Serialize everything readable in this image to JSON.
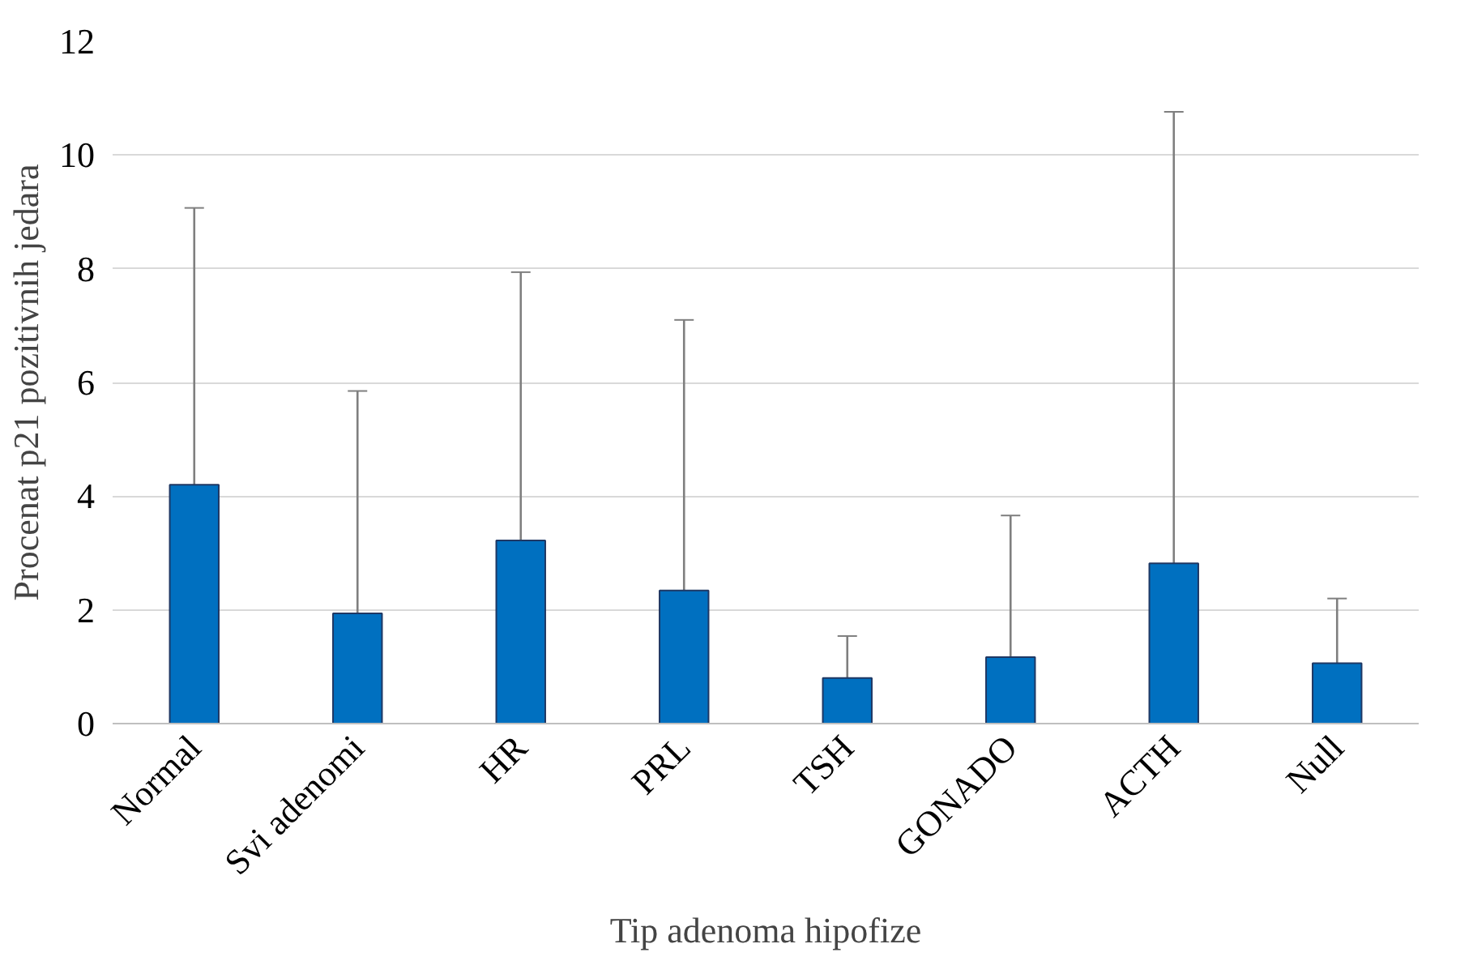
{
  "chart_data": {
    "type": "bar",
    "xlabel": "Tip adenoma hipofize",
    "ylabel": "Procenat p21 pozitivnih jedara",
    "categories": [
      "Normal",
      "Svi adenomi",
      "HR",
      "PRL",
      "TSH",
      "GONADO",
      "ACTH",
      "Null"
    ],
    "values": [
      4.2,
      1.94,
      3.22,
      2.34,
      0.8,
      1.17,
      2.82,
      1.06
    ],
    "errors": [
      [
        4.2,
        9.07
      ],
      [
        1.94,
        5.85
      ],
      [
        3.22,
        7.94
      ],
      [
        2.34,
        7.1
      ],
      [
        0.8,
        1.54
      ],
      [
        1.17,
        3.66
      ],
      [
        2.82,
        10.76
      ],
      [
        1.06,
        2.2
      ]
    ],
    "color": "#0070c0",
    "ylim": [
      0,
      12
    ],
    "yticks": [
      0,
      2,
      4,
      6,
      8,
      10,
      12
    ],
    "grid": "y"
  }
}
